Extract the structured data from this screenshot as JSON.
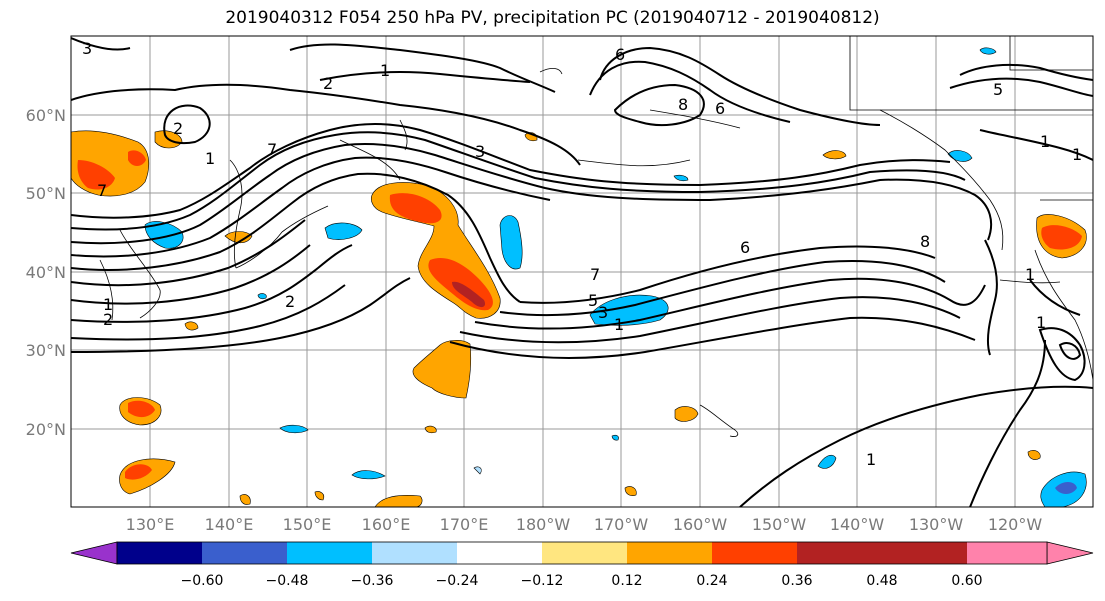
{
  "title": "2019040312 F054 250 hPa PV, precipitation PC (2019040712 - 2019040812)",
  "longitude_labels": [
    "130°E",
    "140°E",
    "150°E",
    "160°E",
    "170°E",
    "180°W",
    "170°W",
    "160°W",
    "150°W",
    "140°W",
    "130°W",
    "120°W"
  ],
  "latitude_labels": [
    "60°N",
    "50°N",
    "40°N",
    "30°N",
    "20°N"
  ],
  "contour_labels": [
    "3",
    "2",
    "1",
    "6",
    "8",
    "6",
    "5",
    "2",
    "7",
    "3",
    "1",
    "7",
    "1",
    "1",
    "6",
    "8",
    "7",
    "5",
    "3",
    "1",
    "1",
    "2",
    "2",
    "1",
    "1",
    "1"
  ],
  "colorbar": {
    "ticks": [
      "−0.60",
      "−0.48",
      "−0.36",
      "−0.24",
      "−0.12",
      "0.12",
      "0.24",
      "0.36",
      "0.48",
      "0.60"
    ],
    "colors": [
      "#9932cc",
      "#00008b",
      "#3a5fcd",
      "#00bfff",
      "#b0e0ff",
      "#ffffff",
      "#ffe680",
      "#ffa500",
      "#ff4000",
      "#b22222",
      "#ff82ab"
    ]
  }
}
